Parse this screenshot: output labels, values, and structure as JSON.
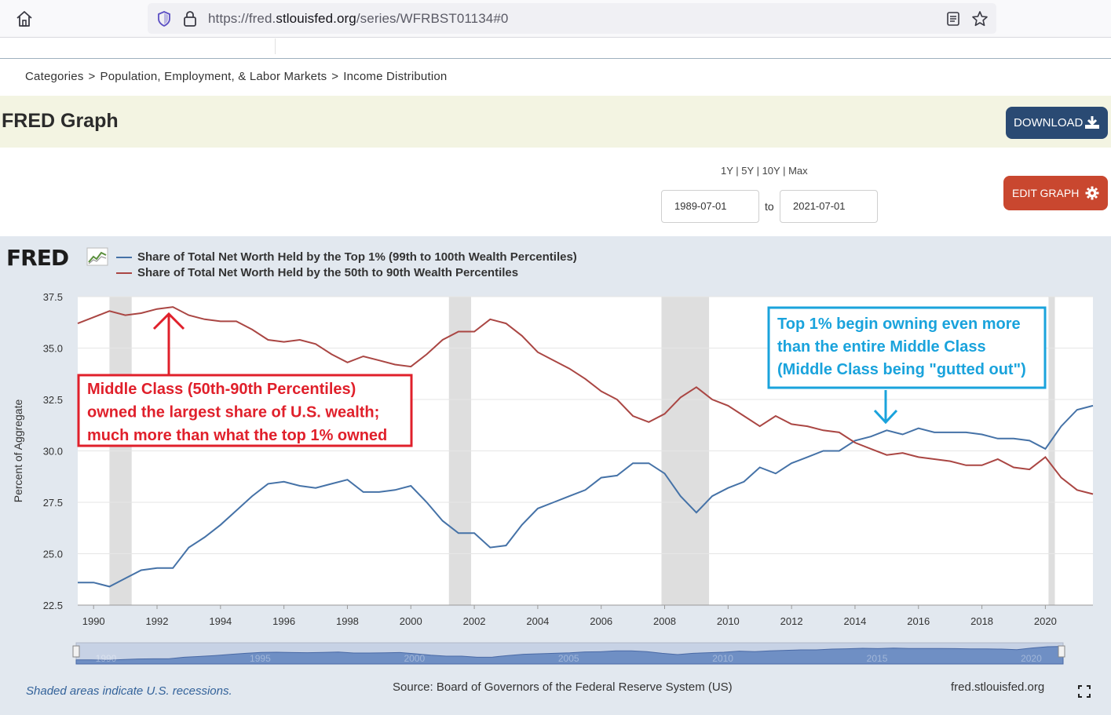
{
  "browser": {
    "url_prefix": "https://fred.",
    "url_domain": "stlouisfed.org",
    "url_suffix": "/series/WFRBST01134#0"
  },
  "breadcrumb": [
    "Categories",
    ">",
    "Population, Employment, & Labor Markets",
    ">",
    "Income Distribution"
  ],
  "header": {
    "title": "FRED Graph",
    "download_label": "DOWNLOAD"
  },
  "controls": {
    "range_links": [
      "1Y",
      "5Y",
      "10Y",
      "Max"
    ],
    "start_date": "1989-07-01",
    "to_label": "to",
    "end_date": "2021-07-01",
    "edit_label": "EDIT GRAPH"
  },
  "graph": {
    "logo": "FRED",
    "footer_note": "Shaded areas indicate U.S. recessions.",
    "source": "Source: Board of Governors of the Federal Reserve System (US)",
    "site": "fred.stlouisfed.org"
  },
  "annotations": {
    "red_box": [
      "Middle Class (50th-90th Percentiles)",
      "owned the largest share of U.S. wealth;",
      "much more than what the top 1% owned"
    ],
    "blue_box": [
      "Top 1% begin owning even more",
      "than the entire Middle Class",
      "(Middle Class being \"gutted out\")"
    ]
  },
  "colors": {
    "top1": "#4572a7",
    "middle": "#aa4643",
    "red_box": "#e0202b",
    "blue_box": "#1aa3dc",
    "recession": "#dedede"
  },
  "chart_data": {
    "type": "line",
    "ylabel": "Percent of Aggregate",
    "ylim": [
      22.5,
      37.5
    ],
    "yticks": [
      22.5,
      25.0,
      27.5,
      30.0,
      32.5,
      35.0,
      37.5
    ],
    "xlim": [
      1989.5,
      2021.5
    ],
    "xticks": [
      1990,
      1992,
      1994,
      1996,
      1998,
      2000,
      2002,
      2004,
      2006,
      2008,
      2010,
      2012,
      2014,
      2016,
      2018,
      2020
    ],
    "recessions": [
      [
        1990.5,
        1991.2
      ],
      [
        2001.2,
        2001.9
      ],
      [
        2007.9,
        2009.4
      ],
      [
        2020.1,
        2020.3
      ]
    ],
    "navigator_labels": [
      "1990",
      "1995",
      "2000",
      "2005",
      "2010",
      "2015",
      "2020"
    ],
    "series": [
      {
        "name": "Share of Total Net Worth Held by the Top 1% (99th to 100th Wealth Percentiles)",
        "x": [
          1989.5,
          1990,
          1990.5,
          1991,
          1991.5,
          1992,
          1992.5,
          1993,
          1993.5,
          1994,
          1994.5,
          1995,
          1995.5,
          1996,
          1996.5,
          1997,
          1997.5,
          1998,
          1998.5,
          1999,
          1999.5,
          2000,
          2000.5,
          2001,
          2001.5,
          2002,
          2002.5,
          2003,
          2003.5,
          2004,
          2004.5,
          2005,
          2005.5,
          2006,
          2006.5,
          2007,
          2007.5,
          2008,
          2008.5,
          2009,
          2009.5,
          2010,
          2010.5,
          2011,
          2011.5,
          2012,
          2012.5,
          2013,
          2013.5,
          2014,
          2014.5,
          2015,
          2015.5,
          2016,
          2016.5,
          2017,
          2017.5,
          2018,
          2018.5,
          2019,
          2019.5,
          2020,
          2020.5,
          2021,
          2021.5
        ],
        "values": [
          23.6,
          23.6,
          23.4,
          23.8,
          24.2,
          24.3,
          24.3,
          25.3,
          25.8,
          26.4,
          27.1,
          27.8,
          28.4,
          28.5,
          28.3,
          28.2,
          28.4,
          28.6,
          28.0,
          28.0,
          28.1,
          28.3,
          27.5,
          26.6,
          26.0,
          26.0,
          25.3,
          25.4,
          26.4,
          27.2,
          27.5,
          27.8,
          28.1,
          28.7,
          28.8,
          29.4,
          29.4,
          28.9,
          27.8,
          27.0,
          27.8,
          28.2,
          28.5,
          29.2,
          28.9,
          29.4,
          29.7,
          30.0,
          30.0,
          30.5,
          30.7,
          31.0,
          30.8,
          31.1,
          30.9,
          30.9,
          30.9,
          30.8,
          30.6,
          30.6,
          30.5,
          30.1,
          31.2,
          32.0,
          32.2
        ]
      },
      {
        "name": "Share of Total Net Worth Held by the 50th to 90th Wealth Percentiles",
        "x": [
          1989.5,
          1990,
          1990.5,
          1991,
          1991.5,
          1992,
          1992.5,
          1993,
          1993.5,
          1994,
          1994.5,
          1995,
          1995.5,
          1996,
          1996.5,
          1997,
          1997.5,
          1998,
          1998.5,
          1999,
          1999.5,
          2000,
          2000.5,
          2001,
          2001.5,
          2002,
          2002.5,
          2003,
          2003.5,
          2004,
          2004.5,
          2005,
          2005.5,
          2006,
          2006.5,
          2007,
          2007.5,
          2008,
          2008.5,
          2009,
          2009.5,
          2010,
          2010.5,
          2011,
          2011.5,
          2012,
          2012.5,
          2013,
          2013.5,
          2014,
          2014.5,
          2015,
          2015.5,
          2016,
          2016.5,
          2017,
          2017.5,
          2018,
          2018.5,
          2019,
          2019.5,
          2020,
          2020.5,
          2021,
          2021.5
        ],
        "values": [
          36.2,
          36.5,
          36.8,
          36.6,
          36.7,
          36.9,
          37.0,
          36.6,
          36.4,
          36.3,
          36.3,
          35.9,
          35.4,
          35.3,
          35.4,
          35.2,
          34.7,
          34.3,
          34.6,
          34.4,
          34.2,
          34.1,
          34.7,
          35.4,
          35.8,
          35.8,
          36.4,
          36.2,
          35.6,
          34.8,
          34.4,
          34.0,
          33.5,
          32.9,
          32.5,
          31.7,
          31.4,
          31.8,
          32.6,
          33.1,
          32.5,
          32.2,
          31.7,
          31.2,
          31.7,
          31.3,
          31.2,
          31.0,
          30.9,
          30.4,
          30.1,
          29.8,
          29.9,
          29.7,
          29.6,
          29.5,
          29.3,
          29.3,
          29.6,
          29.2,
          29.1,
          29.7,
          28.7,
          28.1,
          27.9
        ]
      }
    ]
  }
}
